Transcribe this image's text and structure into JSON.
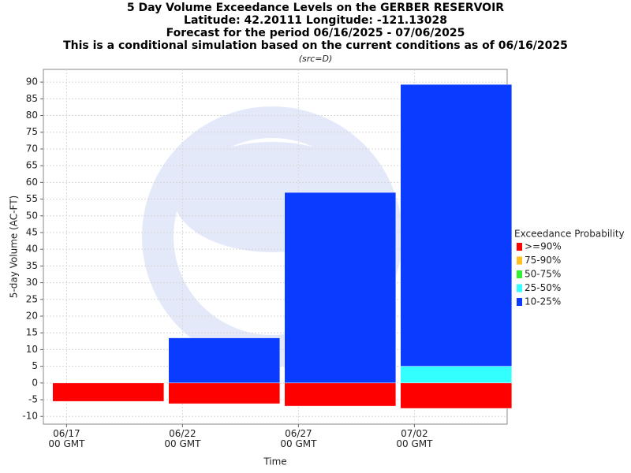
{
  "chart_data": {
    "type": "bar",
    "title": [
      "5 Day Volume Exceedance Levels on the GERBER RESERVOIR",
      "Latitude: 42.20111 Longitude: -121.13028",
      "Forecast for the period 06/16/2025 - 07/06/2025",
      "This is a conditional simulation based on the current conditions as of 06/16/2025"
    ],
    "subtitle": "(src=D)",
    "x_label": "Time",
    "y_label": "5-day Volume (AC-FT)",
    "legend_title": "Exceedance Probability",
    "x": [
      "06/17",
      "06/22",
      "06/27",
      "07/02"
    ],
    "xlim": [
      "06/16",
      "07/06"
    ],
    "xticks": [
      "06/17\n00 GMT",
      "06/22\n00 GMT",
      "06/27\n00 GMT",
      "07/02\n00 GMT"
    ],
    "ylim": [
      -12.3,
      93.8
    ],
    "yticks": [
      -10,
      -5,
      0,
      5,
      10,
      15,
      20,
      25,
      30,
      35,
      40,
      45,
      50,
      55,
      60,
      65,
      70,
      75,
      80,
      85,
      90
    ],
    "grid": true,
    "series": [
      {
        "name": ">=90%",
        "color": "#ff0000",
        "values": [
          -5.5,
          -6.2,
          -6.9,
          -7.6
        ]
      },
      {
        "name": "75-90%",
        "color": "#ffc020",
        "values": [
          -5.5,
          -6.2,
          -6.9,
          -7.6
        ]
      },
      {
        "name": "50-75%",
        "color": "#33ee33",
        "values": [
          -5.5,
          -6.2,
          -6.9,
          -7.6
        ]
      },
      {
        "name": "25-50%",
        "color": "#33ffff",
        "values": [
          -5.5,
          -6.2,
          -6.9,
          5
        ]
      },
      {
        "name": "10-25%",
        "color": "#0a3cff",
        "values": [
          -5.5,
          13.5,
          57,
          89.3
        ]
      }
    ]
  }
}
